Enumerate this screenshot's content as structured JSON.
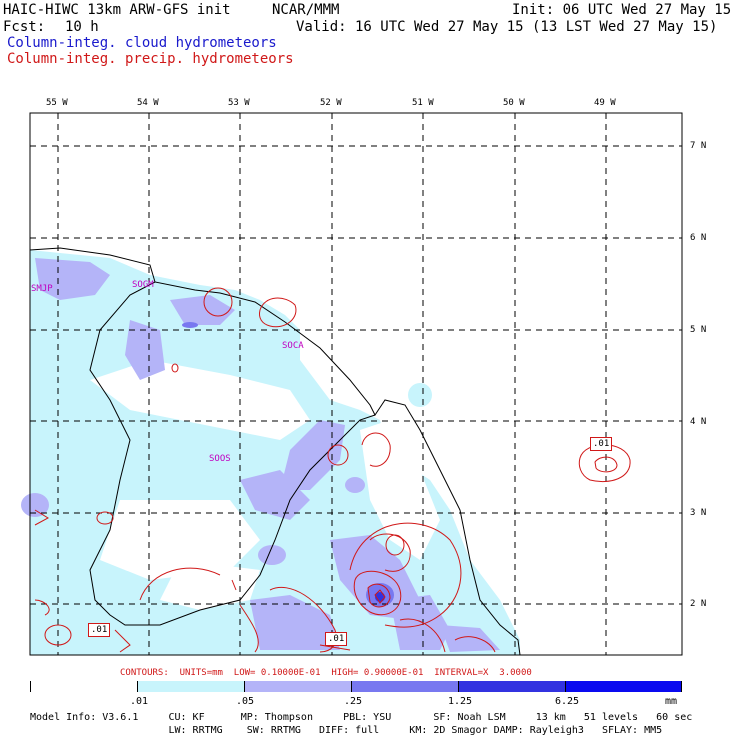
{
  "header": {
    "model_title": "HAIC-HIWC 13km ARW-GFS init",
    "center": "NCAR/MMM",
    "init": "Init: 06 UTC Wed 27 May 15",
    "fcst_label": "Fcst:",
    "fcst_value": "10 h",
    "valid": "Valid: 16 UTC Wed 27 May 15 (13 LST Wed 27 May 15)",
    "field_cloud": "Column-integ. cloud hydrometeors",
    "field_precip": "Column-integ. precip. hydrometeors"
  },
  "colors": {
    "cloud_text": "#1a1acc",
    "precip_text": "#d01818",
    "fill_1": "#c8f4fc",
    "fill_2": "#b4b4f8",
    "fill_3": "#7878f0",
    "fill_4": "#3232e0",
    "fill_5": "#0a0af0",
    "coast": "#000000",
    "station": "#c000c0",
    "contour": "#d01818"
  },
  "map": {
    "lon_labels": [
      "55 W",
      "54 W",
      "53 W",
      "52 W",
      "51 W",
      "50 W",
      "49 W"
    ],
    "lat_labels": [
      "7 N",
      "6 N",
      "5 N",
      "4 N",
      "3 N",
      "2 N"
    ],
    "stations": [
      "SMJP",
      "SOGM",
      "SOCA",
      "SOOS"
    ],
    "contour_labels": [
      ".01",
      ".01",
      ".01"
    ]
  },
  "contours_line": "CONTOURS:  UNITS=mm  LOW= 0.10000E-01  HIGH= 0.90000E-01  INTERVAL=X  3.0000",
  "colorbar": {
    "labels": [
      ".01",
      ".05",
      ".25",
      "1.25",
      "6.25"
    ],
    "units": "mm"
  },
  "model_info": {
    "line1": "Model Info: V3.6.1     CU: KF      MP: Thompson     PBL: YSU       SF: Noah LSM     13 km   51 levels   60 sec",
    "line2": "                       LW: RRTMG    SW: RRTMG   DIFF: full     KM: 2D Smagor DAMP: Rayleigh3   SFLAY: MM5"
  }
}
